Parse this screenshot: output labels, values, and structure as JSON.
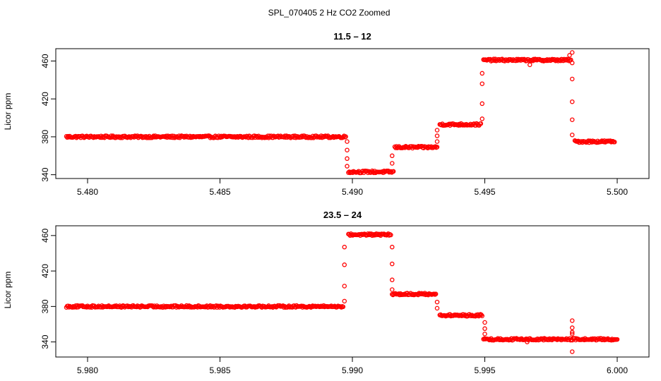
{
  "figure_title": "SPL_070405  2 Hz CO2 Zoomed",
  "marker_color": "#ff0000",
  "chart_data": [
    {
      "type": "scatter",
      "title": "11.5 – 12",
      "xlabel": "",
      "ylabel": "Licor ppm",
      "xlim": [
        5.4788,
        5.5012
      ],
      "ylim": [
        336,
        473
      ],
      "xticks": [
        5.48,
        5.485,
        5.49,
        5.495,
        5.5
      ],
      "xtick_labels": [
        "5.480",
        "5.485",
        "5.490",
        "5.495",
        "5.500"
      ],
      "yticks": [
        340,
        380,
        420,
        460
      ],
      "ytick_labels": [
        "340",
        "380",
        "420",
        "460"
      ],
      "grid": false,
      "legend": "none",
      "series": [
        {
          "segments": [
            {
              "x0": 5.4792,
              "x1": 5.48975,
              "y": 380
            },
            {
              "x0": 5.48985,
              "x1": 5.49155,
              "y": 343
            },
            {
              "x0": 5.4916,
              "x1": 5.4932,
              "y": 369
            },
            {
              "x0": 5.4933,
              "x1": 5.49485,
              "y": 393
            },
            {
              "x0": 5.49495,
              "x1": 5.49825,
              "y": 461
            },
            {
              "x0": 5.4984,
              "x1": 5.4999,
              "y": 375
            }
          ],
          "transitions": [
            {
              "x": 5.4898,
              "y": [
                375,
                366,
                357,
                349
              ]
            },
            {
              "x": 5.4915,
              "y": [
                352,
                360
              ]
            },
            {
              "x": 5.4932,
              "y": [
                375,
                381,
                387
              ]
            },
            {
              "x": 5.4949,
              "y": [
                399,
                415,
                436,
                447
              ]
            },
            {
              "x": 5.4983,
              "y": [
                469,
                458,
                441,
                417,
                398,
                382
              ]
            }
          ],
          "outliers": [
            {
              "x": 5.4967,
              "y": 456
            },
            {
              "x": 5.4982,
              "y": 466
            }
          ]
        }
      ]
    },
    {
      "type": "scatter",
      "title": "23.5 – 24",
      "xlabel": "",
      "ylabel": "Licor ppm",
      "xlim": [
        5.9788,
        6.0012
      ],
      "ylim": [
        323,
        471
      ],
      "xticks": [
        5.98,
        5.985,
        5.99,
        5.995,
        6.0
      ],
      "xtick_labels": [
        "5.980",
        "5.985",
        "5.990",
        "5.995",
        "6.000"
      ],
      "yticks": [
        340,
        380,
        420,
        460
      ],
      "ytick_labels": [
        "340",
        "380",
        "420",
        "460"
      ],
      "grid": false,
      "legend": "none",
      "series": [
        {
          "segments": [
            {
              "x0": 5.9792,
              "x1": 5.98965,
              "y": 380
            },
            {
              "x0": 5.98985,
              "x1": 5.99145,
              "y": 461
            },
            {
              "x0": 5.9915,
              "x1": 5.99315,
              "y": 394
            },
            {
              "x0": 5.9933,
              "x1": 5.9949,
              "y": 370
            },
            {
              "x0": 5.99495,
              "x1": 6.0,
              "y": 343
            }
          ],
          "transitions": [
            {
              "x": 5.9897,
              "y": [
                386,
                403,
                427,
                447
              ]
            },
            {
              "x": 5.9915,
              "y": [
                447,
                428,
                410,
                399
              ]
            },
            {
              "x": 5.9932,
              "y": [
                385,
                378
              ]
            },
            {
              "x": 5.995,
              "y": [
                362,
                355,
                349
              ]
            },
            {
              "x": 5.9983,
              "y": [
                364,
                356,
                351,
                349
              ]
            }
          ],
          "outliers": [
            {
              "x": 5.9983,
              "y": 329
            },
            {
              "x": 5.9966,
              "y": 340
            }
          ]
        }
      ]
    }
  ]
}
